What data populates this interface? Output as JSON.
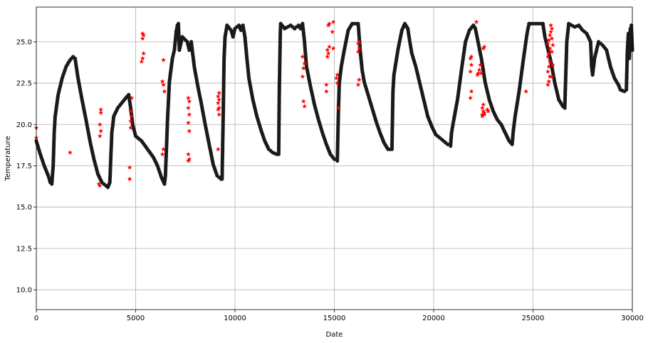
{
  "chart_data": {
    "type": "scatter",
    "title": "",
    "xlabel": "Date",
    "ylabel": "Temperature",
    "xlim": [
      0,
      30000
    ],
    "ylim": [
      8.8,
      27.1
    ],
    "xticks": [
      0,
      5000,
      10000,
      15000,
      20000,
      25000,
      30000
    ],
    "yticks": [
      10.0,
      12.5,
      15.0,
      17.5,
      20.0,
      22.5,
      25.0
    ],
    "grid": true,
    "legend": "none",
    "colors": {
      "series": "#1a1a1a",
      "series_line": "#666666",
      "outliers": "#ff0000"
    },
    "series": [
      {
        "marker": "dot-with-line",
        "points": [
          [
            0,
            19.0
          ],
          [
            200,
            18.2
          ],
          [
            400,
            17.5
          ],
          [
            600,
            16.9
          ],
          [
            700,
            16.5
          ],
          [
            780,
            16.4
          ],
          [
            850,
            17.5
          ],
          [
            900,
            19.5
          ],
          [
            950,
            20.5
          ],
          [
            1100,
            21.8
          ],
          [
            1300,
            22.8
          ],
          [
            1500,
            23.5
          ],
          [
            1700,
            23.9
          ],
          [
            1850,
            24.1
          ],
          [
            1950,
            24.0
          ],
          [
            2100,
            22.8
          ],
          [
            2300,
            21.5
          ],
          [
            2500,
            20.3
          ],
          [
            2700,
            19.0
          ],
          [
            2900,
            17.9
          ],
          [
            3100,
            17.0
          ],
          [
            3300,
            16.5
          ],
          [
            3500,
            16.3
          ],
          [
            3600,
            16.2
          ],
          [
            3700,
            16.5
          ],
          [
            3750,
            18.0
          ],
          [
            3800,
            19.5
          ],
          [
            3900,
            20.5
          ],
          [
            4100,
            21.0
          ],
          [
            4300,
            21.3
          ],
          [
            4500,
            21.6
          ],
          [
            4650,
            21.8
          ],
          [
            4750,
            21.0
          ],
          [
            4850,
            20.0
          ],
          [
            5000,
            19.3
          ],
          [
            5300,
            19.0
          ],
          [
            5600,
            18.5
          ],
          [
            5900,
            18.0
          ],
          [
            6100,
            17.5
          ],
          [
            6300,
            16.8
          ],
          [
            6450,
            16.4
          ],
          [
            6500,
            16.9
          ],
          [
            6550,
            18.5
          ],
          [
            6600,
            20.2
          ],
          [
            6700,
            22.6
          ],
          [
            6850,
            24.0
          ],
          [
            6950,
            24.5
          ],
          [
            7050,
            25.7
          ],
          [
            7100,
            26.0
          ],
          [
            7150,
            26.1
          ],
          [
            7200,
            24.5
          ],
          [
            7350,
            25.3
          ],
          [
            7600,
            25.0
          ],
          [
            7700,
            24.5
          ],
          [
            7800,
            25.0
          ],
          [
            7850,
            24.5
          ],
          [
            7950,
            23.5
          ],
          [
            8100,
            22.5
          ],
          [
            8300,
            21.3
          ],
          [
            8500,
            20.0
          ],
          [
            8700,
            18.8
          ],
          [
            8900,
            17.6
          ],
          [
            9100,
            16.9
          ],
          [
            9200,
            16.8
          ],
          [
            9300,
            16.7
          ],
          [
            9350,
            16.7
          ],
          [
            9400,
            20.0
          ],
          [
            9450,
            24.0
          ],
          [
            9500,
            25.3
          ],
          [
            9600,
            26.0
          ],
          [
            9800,
            25.7
          ],
          [
            9900,
            25.3
          ],
          [
            10000,
            25.8
          ],
          [
            10200,
            26.0
          ],
          [
            10300,
            25.7
          ],
          [
            10400,
            26.0
          ],
          [
            10500,
            25.3
          ],
          [
            10600,
            24.0
          ],
          [
            10700,
            22.8
          ],
          [
            10900,
            21.5
          ],
          [
            11100,
            20.5
          ],
          [
            11300,
            19.7
          ],
          [
            11500,
            19.0
          ],
          [
            11700,
            18.5
          ],
          [
            11900,
            18.3
          ],
          [
            12100,
            18.2
          ],
          [
            12200,
            18.2
          ],
          [
            12230,
            22.0
          ],
          [
            12280,
            25.5
          ],
          [
            12300,
            26.1
          ],
          [
            12500,
            25.8
          ],
          [
            12800,
            26.0
          ],
          [
            13000,
            25.8
          ],
          [
            13200,
            26.0
          ],
          [
            13300,
            25.8
          ],
          [
            13400,
            26.1
          ],
          [
            13500,
            25.0
          ],
          [
            13600,
            23.5
          ],
          [
            13800,
            22.3
          ],
          [
            14000,
            21.2
          ],
          [
            14200,
            20.3
          ],
          [
            14400,
            19.5
          ],
          [
            14600,
            18.8
          ],
          [
            14800,
            18.2
          ],
          [
            15000,
            17.9
          ],
          [
            15150,
            17.8
          ],
          [
            15200,
            20.5
          ],
          [
            15250,
            22.5
          ],
          [
            15350,
            23.5
          ],
          [
            15500,
            24.5
          ],
          [
            15700,
            25.7
          ],
          [
            15900,
            26.1
          ],
          [
            16200,
            26.1
          ],
          [
            16300,
            24.5
          ],
          [
            16400,
            23.3
          ],
          [
            16500,
            22.6
          ],
          [
            16700,
            21.8
          ],
          [
            16900,
            21.0
          ],
          [
            17100,
            20.2
          ],
          [
            17300,
            19.5
          ],
          [
            17500,
            18.9
          ],
          [
            17700,
            18.5
          ],
          [
            17900,
            18.5
          ],
          [
            17950,
            22.0
          ],
          [
            18000,
            23.0
          ],
          [
            18200,
            24.5
          ],
          [
            18400,
            25.7
          ],
          [
            18550,
            26.1
          ],
          [
            18700,
            25.8
          ],
          [
            18800,
            25.0
          ],
          [
            18900,
            24.3
          ],
          [
            19100,
            23.5
          ],
          [
            19300,
            22.5
          ],
          [
            19500,
            21.5
          ],
          [
            19700,
            20.5
          ],
          [
            19900,
            19.9
          ],
          [
            20100,
            19.4
          ],
          [
            20300,
            19.2
          ],
          [
            20500,
            19.0
          ],
          [
            20700,
            18.8
          ],
          [
            20850,
            18.7
          ],
          [
            20900,
            19.5
          ],
          [
            21000,
            20.2
          ],
          [
            21200,
            21.5
          ],
          [
            21400,
            23.3
          ],
          [
            21600,
            25.0
          ],
          [
            21800,
            25.7
          ],
          [
            22000,
            26.0
          ],
          [
            22100,
            25.8
          ],
          [
            22200,
            25.2
          ],
          [
            22400,
            24.0
          ],
          [
            22600,
            22.5
          ],
          [
            22800,
            21.5
          ],
          [
            23000,
            20.8
          ],
          [
            23200,
            20.3
          ],
          [
            23400,
            20.0
          ],
          [
            23600,
            19.5
          ],
          [
            23800,
            19.0
          ],
          [
            23950,
            18.8
          ],
          [
            24000,
            19.5
          ],
          [
            24100,
            20.5
          ],
          [
            24300,
            22.0
          ],
          [
            24500,
            23.8
          ],
          [
            24700,
            25.5
          ],
          [
            24800,
            26.1
          ],
          [
            25200,
            26.1
          ],
          [
            25500,
            26.1
          ],
          [
            25600,
            25.3
          ],
          [
            25700,
            24.8
          ],
          [
            25900,
            23.8
          ],
          [
            26100,
            22.5
          ],
          [
            26300,
            21.5
          ],
          [
            26500,
            21.1
          ],
          [
            26600,
            21.0
          ],
          [
            26700,
            25.0
          ],
          [
            26800,
            26.1
          ],
          [
            27100,
            25.9
          ],
          [
            27300,
            26.0
          ],
          [
            27500,
            25.7
          ],
          [
            27700,
            25.5
          ],
          [
            27900,
            25.0
          ],
          [
            27950,
            23.5
          ],
          [
            28000,
            23.0
          ],
          [
            28100,
            24.0
          ],
          [
            28300,
            25.0
          ],
          [
            28500,
            24.8
          ],
          [
            28700,
            24.5
          ],
          [
            28900,
            23.5
          ],
          [
            29100,
            22.8
          ],
          [
            29300,
            22.4
          ],
          [
            29400,
            22.1
          ],
          [
            29600,
            22.0
          ],
          [
            29700,
            22.1
          ],
          [
            29750,
            24.5
          ],
          [
            29800,
            25.5
          ],
          [
            29850,
            24.0
          ],
          [
            29900,
            25.8
          ],
          [
            29950,
            26.0
          ],
          [
            30000,
            24.5
          ]
        ]
      },
      {
        "marker": "star",
        "points": [
          [
            0,
            19.8
          ],
          [
            0,
            19.2
          ],
          [
            1700,
            18.3
          ],
          [
            3150,
            16.4
          ],
          [
            3200,
            16.3
          ],
          [
            3200,
            19.3
          ],
          [
            3250,
            19.6
          ],
          [
            3200,
            20.0
          ],
          [
            3250,
            20.7
          ],
          [
            3250,
            20.9
          ],
          [
            4700,
            16.7
          ],
          [
            4700,
            17.4
          ],
          [
            4750,
            19.8
          ],
          [
            4750,
            20.2
          ],
          [
            4800,
            20.5
          ],
          [
            4750,
            20.8
          ],
          [
            4800,
            21.6
          ],
          [
            5300,
            23.8
          ],
          [
            5350,
            24.0
          ],
          [
            5400,
            24.3
          ],
          [
            5350,
            25.2
          ],
          [
            5400,
            25.4
          ],
          [
            5350,
            25.5
          ],
          [
            6350,
            18.2
          ],
          [
            6400,
            18.5
          ],
          [
            6450,
            22.0
          ],
          [
            6400,
            22.4
          ],
          [
            6350,
            22.6
          ],
          [
            6400,
            23.9
          ],
          [
            7650,
            17.8
          ],
          [
            7700,
            17.9
          ],
          [
            7650,
            18.2
          ],
          [
            7700,
            19.6
          ],
          [
            7650,
            20.1
          ],
          [
            7700,
            20.6
          ],
          [
            7650,
            21.0
          ],
          [
            7700,
            21.4
          ],
          [
            7650,
            21.6
          ],
          [
            9150,
            18.5
          ],
          [
            9200,
            20.6
          ],
          [
            9150,
            20.9
          ],
          [
            9200,
            21.0
          ],
          [
            9150,
            21.3
          ],
          [
            9200,
            21.5
          ],
          [
            9150,
            21.7
          ],
          [
            9200,
            21.9
          ],
          [
            13500,
            21.1
          ],
          [
            13450,
            21.4
          ],
          [
            13400,
            22.9
          ],
          [
            13450,
            23.4
          ],
          [
            13500,
            23.7
          ],
          [
            13400,
            24.1
          ],
          [
            14600,
            22.0
          ],
          [
            14600,
            22.4
          ],
          [
            14650,
            24.1
          ],
          [
            14700,
            24.3
          ],
          [
            14650,
            24.5
          ],
          [
            14750,
            24.7
          ],
          [
            14700,
            26.0
          ],
          [
            14750,
            26.1
          ],
          [
            14900,
            25.6
          ],
          [
            14950,
            24.6
          ],
          [
            14950,
            26.2
          ],
          [
            15100,
            22.8
          ],
          [
            15150,
            23.0
          ],
          [
            15200,
            21.0
          ],
          [
            15150,
            22.5
          ],
          [
            16200,
            22.4
          ],
          [
            16250,
            22.7
          ],
          [
            16200,
            24.4
          ],
          [
            16250,
            24.6
          ],
          [
            16200,
            24.9
          ],
          [
            16250,
            25.0
          ],
          [
            21850,
            21.6
          ],
          [
            21900,
            22.0
          ],
          [
            21850,
            23.2
          ],
          [
            21900,
            23.6
          ],
          [
            21850,
            24.0
          ],
          [
            21900,
            24.1
          ],
          [
            22150,
            26.2
          ],
          [
            22200,
            23.0
          ],
          [
            22250,
            23.1
          ],
          [
            22300,
            23.3
          ],
          [
            22350,
            23.6
          ],
          [
            22400,
            23.1
          ],
          [
            22450,
            20.5
          ],
          [
            22450,
            20.6
          ],
          [
            22500,
            20.8
          ],
          [
            22550,
            20.7
          ],
          [
            22450,
            21.0
          ],
          [
            22500,
            21.2
          ],
          [
            22550,
            20.6
          ],
          [
            22500,
            24.6
          ],
          [
            22550,
            24.7
          ],
          [
            22700,
            20.9
          ],
          [
            22750,
            20.8
          ],
          [
            24650,
            22.0
          ],
          [
            25750,
            22.4
          ],
          [
            25800,
            22.6
          ],
          [
            25850,
            22.9
          ],
          [
            25750,
            23.2
          ],
          [
            25800,
            23.5
          ],
          [
            25850,
            23.8
          ],
          [
            25750,
            24.1
          ],
          [
            25800,
            24.3
          ],
          [
            25850,
            24.6
          ],
          [
            25750,
            24.9
          ],
          [
            25800,
            25.1
          ],
          [
            25850,
            25.4
          ],
          [
            25900,
            25.6
          ],
          [
            25950,
            25.8
          ],
          [
            25900,
            26.0
          ],
          [
            25950,
            25.2
          ],
          [
            26000,
            24.8
          ],
          [
            25950,
            24.4
          ],
          [
            26000,
            23.6
          ],
          [
            25950,
            22.9
          ]
        ]
      }
    ]
  }
}
